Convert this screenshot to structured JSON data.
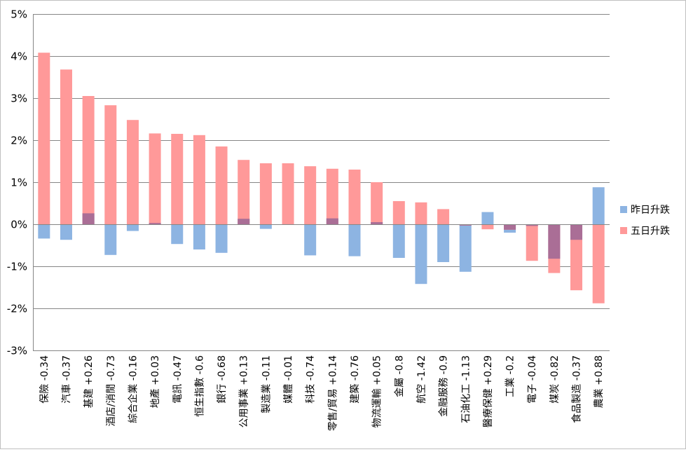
{
  "chart_data": {
    "type": "bar",
    "stacking": "overlap",
    "ylim": [
      -3,
      5
    ],
    "yticks": [
      -3,
      -2,
      -1,
      0,
      1,
      2,
      3,
      4,
      5
    ],
    "ytick_labels": [
      "-3%",
      "-2%",
      "-1%",
      "0%",
      "1%",
      "2%",
      "3%",
      "4%",
      "5%"
    ],
    "y_unit": "%",
    "grid": true,
    "legend_position": "right",
    "categories": [
      "保險 -0.34",
      "汽車 -0.37",
      "基建 +0.26",
      "酒店/消閒 -0.73",
      "綜合企業 -0.16",
      "地產 +0.03",
      "電訊 -0.47",
      "恒生指數 -0.6",
      "銀行 -0.68",
      "公用事業 +0.13",
      "製造業 -0.11",
      "媒體 -0.01",
      "科技 -0.74",
      "零售/貿易 +0.14",
      "建築 -0.76",
      "物流運輸 +0.05",
      "金屬 -0.8",
      "航空 -1.42",
      "金融服務 -0.9",
      "石油化工 -1.13",
      "醫療保健 +0.29",
      "工業 -0.2",
      "電子 -0.04",
      "煤炭 -0.82",
      "食品製造 -0.37",
      "農業 +0.88"
    ],
    "series": [
      {
        "name": "昨日升跌",
        "color": "#8db4e2",
        "values": [
          -0.34,
          -0.37,
          0.26,
          -0.73,
          -0.16,
          0.03,
          -0.47,
          -0.6,
          -0.68,
          0.13,
          -0.11,
          -0.01,
          -0.74,
          0.14,
          -0.76,
          0.05,
          -0.8,
          -1.42,
          -0.9,
          -1.13,
          0.29,
          -0.2,
          -0.04,
          -0.82,
          -0.37,
          0.88
        ]
      },
      {
        "name": "五日升跌",
        "color": "#ff9999",
        "values": [
          4.08,
          3.68,
          3.05,
          2.83,
          2.48,
          2.16,
          2.15,
          2.12,
          1.85,
          1.53,
          1.45,
          1.45,
          1.38,
          1.32,
          1.3,
          1.0,
          0.55,
          0.52,
          0.36,
          -0.03,
          -0.12,
          -0.13,
          -0.87,
          -1.16,
          -1.57,
          -1.88
        ]
      }
    ],
    "overlap_color": "#aa6e96"
  }
}
